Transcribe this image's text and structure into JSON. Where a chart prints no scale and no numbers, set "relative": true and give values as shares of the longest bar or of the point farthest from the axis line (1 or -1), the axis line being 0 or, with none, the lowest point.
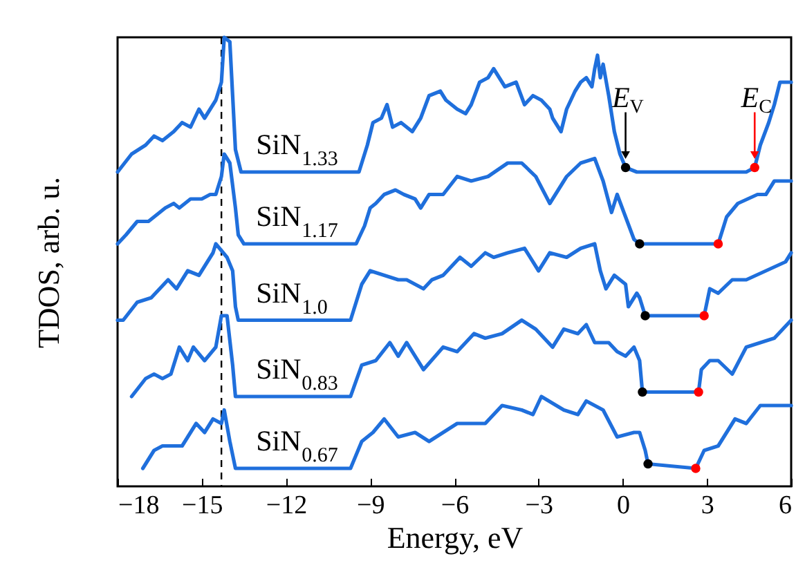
{
  "chart_data": {
    "type": "line",
    "relative": true,
    "xlabel": "Energy, eV",
    "ylabel": "TDOS, arb. u.",
    "xlim": [
      -18,
      6
    ],
    "xticks": [
      -18,
      -15,
      -12,
      -9,
      -6,
      -3,
      0,
      3,
      6
    ],
    "ref_lines": [
      {
        "axis": "x",
        "value": -14.3,
        "color": "#000000",
        "line_style": "dashed"
      }
    ],
    "annotations": [
      {
        "text": "E$_{V}$",
        "x": 0.1,
        "y": 0.71
      },
      {
        "text": "E$_{C}$",
        "x": 4.7,
        "y": 0.71
      }
    ],
    "series": [
      {
        "name": "SiN$_{1.33}$",
        "color": "#1f6fdc",
        "x": [
          -18.0,
          -17.5,
          -17.0,
          -16.7,
          -16.4,
          -16.0,
          -15.7,
          -15.4,
          -15.1,
          -14.9,
          -14.6,
          -14.5,
          -14.3,
          -14.2,
          -14.0,
          -13.9,
          -13.8,
          -13.6,
          -9.4,
          -9.1,
          -8.9,
          -8.6,
          -8.4,
          -8.2,
          -7.9,
          -7.5,
          -7.2,
          -6.9,
          -6.5,
          -6.3,
          -5.9,
          -5.6,
          -5.4,
          -5.1,
          -4.8,
          -4.6,
          -4.4,
          -4.2,
          -3.8,
          -3.5,
          -3.2,
          -2.9,
          -2.6,
          -2.5,
          -2.2,
          -2.0,
          -1.7,
          -1.5,
          -1.3,
          -1.1,
          -1.0,
          -0.9,
          -0.8,
          -0.7,
          -0.5,
          -0.3,
          -0.1,
          0.1,
          0.5,
          4.4,
          4.7,
          4.9,
          5.2,
          5.4,
          5.6,
          6.0
        ],
        "values": [
          0.7,
          0.74,
          0.76,
          0.78,
          0.77,
          0.79,
          0.81,
          0.8,
          0.84,
          0.82,
          0.85,
          0.86,
          0.9,
          1.0,
          0.99,
          0.87,
          0.75,
          0.7,
          0.7,
          0.76,
          0.81,
          0.82,
          0.85,
          0.8,
          0.81,
          0.79,
          0.82,
          0.87,
          0.88,
          0.86,
          0.84,
          0.83,
          0.85,
          0.9,
          0.91,
          0.93,
          0.91,
          0.89,
          0.9,
          0.85,
          0.87,
          0.86,
          0.84,
          0.82,
          0.79,
          0.84,
          0.88,
          0.9,
          0.91,
          0.89,
          0.93,
          0.96,
          0.91,
          0.94,
          0.87,
          0.79,
          0.74,
          0.71,
          0.7,
          0.7,
          0.71,
          0.76,
          0.81,
          0.85,
          0.9,
          0.9
        ]
      },
      {
        "name": "SiN$_{1.17}$",
        "color": "#1f6fdc",
        "x": [
          -18.0,
          -17.7,
          -17.3,
          -16.9,
          -16.5,
          -16.3,
          -16.0,
          -15.8,
          -15.4,
          -15.0,
          -14.7,
          -14.5,
          -14.3,
          -14.2,
          -14.0,
          -13.8,
          -13.7,
          -13.5,
          -9.5,
          -9.2,
          -9.0,
          -8.8,
          -8.5,
          -8.1,
          -7.8,
          -7.4,
          -7.2,
          -6.9,
          -6.4,
          -5.9,
          -5.4,
          -4.8,
          -4.1,
          -3.6,
          -3.1,
          -2.6,
          -2.0,
          -1.5,
          -1.0,
          -0.7,
          -0.4,
          -0.2,
          0.1,
          0.4,
          0.6,
          3.4,
          3.7,
          4.1,
          4.8,
          5.1,
          5.4,
          5.8,
          6.0
        ],
        "values": [
          0.54,
          0.56,
          0.59,
          0.59,
          0.61,
          0.62,
          0.63,
          0.62,
          0.64,
          0.64,
          0.65,
          0.65,
          0.69,
          0.74,
          0.72,
          0.62,
          0.56,
          0.54,
          0.54,
          0.58,
          0.62,
          0.63,
          0.65,
          0.66,
          0.65,
          0.64,
          0.62,
          0.65,
          0.65,
          0.69,
          0.68,
          0.69,
          0.72,
          0.72,
          0.69,
          0.63,
          0.69,
          0.72,
          0.73,
          0.68,
          0.61,
          0.65,
          0.6,
          0.55,
          0.54,
          0.54,
          0.6,
          0.63,
          0.65,
          0.65,
          0.68,
          0.68,
          0.68
        ]
      },
      {
        "name": "SiN$_{1.0}$",
        "color": "#1f6fdc",
        "x": [
          -18.0,
          -17.8,
          -17.3,
          -16.8,
          -16.2,
          -15.9,
          -15.5,
          -15.1,
          -14.9,
          -14.6,
          -14.5,
          -14.1,
          -13.9,
          -13.8,
          -13.7,
          -9.7,
          -9.3,
          -9.0,
          -8.5,
          -8.0,
          -7.7,
          -7.1,
          -6.8,
          -6.4,
          -5.8,
          -5.4,
          -4.9,
          -4.6,
          -4.1,
          -3.5,
          -3.0,
          -2.6,
          -2.0,
          -1.5,
          -1.0,
          -0.8,
          -0.6,
          -0.3,
          0.1,
          0.2,
          0.5,
          0.6,
          0.8,
          2.9,
          3.1,
          3.4,
          3.9,
          4.4,
          5.1,
          5.8,
          6.0
        ],
        "values": [
          0.37,
          0.37,
          0.41,
          0.42,
          0.46,
          0.44,
          0.48,
          0.47,
          0.49,
          0.52,
          0.54,
          0.51,
          0.48,
          0.4,
          0.37,
          0.37,
          0.45,
          0.48,
          0.47,
          0.46,
          0.46,
          0.44,
          0.46,
          0.47,
          0.51,
          0.49,
          0.52,
          0.51,
          0.52,
          0.53,
          0.48,
          0.52,
          0.51,
          0.53,
          0.54,
          0.48,
          0.44,
          0.47,
          0.45,
          0.4,
          0.43,
          0.42,
          0.38,
          0.38,
          0.44,
          0.43,
          0.46,
          0.46,
          0.48,
          0.5,
          0.52
        ]
      },
      {
        "name": "SiN$_{0.83}$",
        "color": "#1f6fdc",
        "x": [
          -17.5,
          -17.0,
          -16.7,
          -16.4,
          -16.1,
          -15.8,
          -15.5,
          -15.3,
          -14.9,
          -14.5,
          -14.3,
          -14.1,
          -13.9,
          -13.8,
          -9.7,
          -9.3,
          -8.8,
          -8.3,
          -8.0,
          -7.7,
          -7.1,
          -6.4,
          -5.9,
          -5.3,
          -4.9,
          -4.3,
          -3.6,
          -3.1,
          -2.5,
          -2.1,
          -1.6,
          -1.3,
          -1.0,
          -0.5,
          -0.2,
          0.1,
          0.4,
          0.6,
          0.7,
          2.7,
          2.8,
          3.1,
          3.4,
          3.9,
          4.4,
          4.9,
          5.4,
          6.0
        ],
        "values": [
          0.2,
          0.24,
          0.25,
          0.24,
          0.25,
          0.31,
          0.28,
          0.31,
          0.28,
          0.31,
          0.38,
          0.38,
          0.27,
          0.2,
          0.2,
          0.27,
          0.28,
          0.32,
          0.29,
          0.32,
          0.26,
          0.31,
          0.3,
          0.34,
          0.33,
          0.34,
          0.37,
          0.35,
          0.31,
          0.35,
          0.34,
          0.36,
          0.32,
          0.32,
          0.3,
          0.29,
          0.31,
          0.28,
          0.21,
          0.21,
          0.26,
          0.28,
          0.28,
          0.25,
          0.31,
          0.32,
          0.33,
          0.37
        ]
      },
      {
        "name": "SiN$_{0.67}$",
        "color": "#1f6fdc",
        "x": [
          -17.1,
          -16.7,
          -16.4,
          -15.9,
          -15.7,
          -15.5,
          -15.2,
          -14.9,
          -14.6,
          -14.3,
          -14.2,
          -14.0,
          -13.8,
          -9.7,
          -9.3,
          -8.9,
          -8.5,
          -8.0,
          -7.4,
          -6.9,
          -6.4,
          -5.9,
          -5.4,
          -4.9,
          -4.3,
          -3.6,
          -3.2,
          -2.9,
          -2.1,
          -1.6,
          -1.3,
          -0.7,
          -0.2,
          0.4,
          0.6,
          0.8,
          0.9,
          2.6,
          2.9,
          3.4,
          4.0,
          4.4,
          4.9,
          5.4,
          6.0
        ],
        "values": [
          0.04,
          0.08,
          0.09,
          0.09,
          0.09,
          0.11,
          0.14,
          0.12,
          0.15,
          0.14,
          0.17,
          0.1,
          0.04,
          0.04,
          0.1,
          0.12,
          0.15,
          0.11,
          0.12,
          0.1,
          0.12,
          0.14,
          0.14,
          0.14,
          0.18,
          0.17,
          0.16,
          0.2,
          0.17,
          0.16,
          0.19,
          0.17,
          0.11,
          0.12,
          0.12,
          0.08,
          0.05,
          0.04,
          0.08,
          0.09,
          0.15,
          0.14,
          0.18,
          0.18,
          0.18
        ]
      },
      {
        "type": "scatter",
        "color": "#000000",
        "x": [
          0.1,
          0.6,
          0.8,
          0.7,
          0.9
        ],
        "values": [
          0.71,
          0.54,
          0.38,
          0.21,
          0.05
        ]
      },
      {
        "type": "scatter",
        "color": "#ff0000",
        "x": [
          4.7,
          3.4,
          2.9,
          2.7,
          2.6
        ],
        "values": [
          0.71,
          0.54,
          0.38,
          0.21,
          0.04
        ]
      }
    ]
  }
}
